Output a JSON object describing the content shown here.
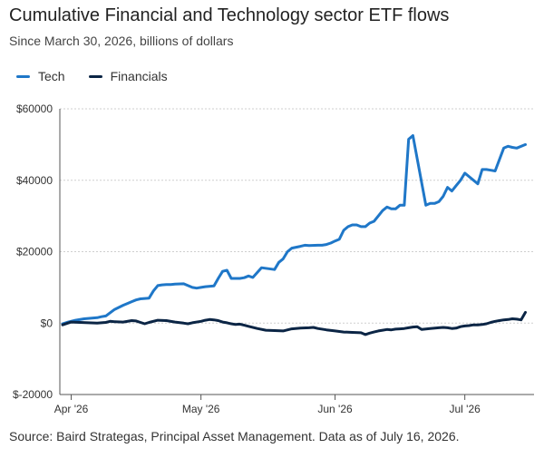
{
  "chart_data": {
    "type": "line",
    "title": "Cumulative Financial and Technology sector ETF flows",
    "subtitle": "Since March 30, 2026, billions of dollars",
    "source": "Source: Baird Strategas, Principal Asset Management. Data as of July 16, 2026.",
    "x_start": "2026-03-30",
    "x_ticks": [
      {
        "day": 2,
        "label": "Apr '26"
      },
      {
        "day": 32,
        "label": "May '26"
      },
      {
        "day": 63,
        "label": "Jun '26"
      },
      {
        "day": 93,
        "label": "Jul '26"
      }
    ],
    "ylim": [
      -20000,
      60000
    ],
    "y_ticks": [
      {
        "value": 60000,
        "label": "$60000"
      },
      {
        "value": 40000,
        "label": "$40000"
      },
      {
        "value": 20000,
        "label": "$20000"
      },
      {
        "value": 0,
        "label": "$0"
      },
      {
        "value": -20000,
        "label": "$-20000"
      }
    ],
    "grid": "horizontal",
    "legend": "top-left",
    "series": [
      {
        "name": "Tech",
        "color": "#1f77c8",
        "x": [
          0,
          1,
          3,
          5,
          8,
          9,
          10,
          12,
          14,
          15,
          16,
          17,
          18,
          20,
          21,
          22,
          23,
          24,
          25,
          26,
          28,
          30,
          31,
          32,
          33,
          35,
          36,
          37,
          38,
          39,
          41,
          42,
          43,
          44,
          46,
          49,
          50,
          51,
          52,
          53,
          55,
          56,
          57,
          59,
          60,
          61,
          62,
          63,
          64,
          65,
          66,
          67,
          68,
          69,
          70,
          71,
          72,
          73,
          74,
          75,
          76,
          77,
          78,
          79,
          80,
          81,
          84,
          85,
          86,
          87,
          88,
          89,
          90,
          91,
          92,
          93,
          96,
          97,
          98,
          99,
          100,
          102,
          103,
          104,
          105,
          107
        ],
        "y": [
          -200,
          200,
          800,
          1200,
          1500,
          1800,
          2000,
          3800,
          5000,
          5500,
          6000,
          6500,
          6800,
          7000,
          9000,
          10500,
          10700,
          10800,
          10800,
          10900,
          11000,
          10000,
          9800,
          10000,
          10200,
          10400,
          12500,
          14500,
          14800,
          12500,
          12500,
          12700,
          13200,
          12800,
          15500,
          15000,
          17000,
          18000,
          20000,
          21000,
          21500,
          21800,
          21700,
          21800,
          21800,
          22000,
          22400,
          23000,
          23500,
          26000,
          27000,
          27500,
          27500,
          27000,
          27000,
          28000,
          28500,
          30000,
          31500,
          32500,
          32000,
          32000,
          33000,
          33000,
          51500,
          52500,
          33000,
          33500,
          33500,
          34000,
          35500,
          38000,
          37000,
          38500,
          40000,
          42000,
          39000,
          43000,
          43000,
          42800,
          42600,
          49000,
          49500,
          49200,
          49000,
          50000
        ],
        "_note": null
      },
      {
        "name": "Financials",
        "color": "#0b2545",
        "x": [
          0,
          2,
          4,
          6,
          8,
          10,
          11,
          12,
          14,
          16,
          17,
          18,
          19,
          20,
          22,
          24,
          26,
          28,
          29,
          30,
          32,
          33,
          34,
          35,
          36,
          37,
          38,
          39,
          40,
          41,
          42,
          43,
          45,
          47,
          49,
          51,
          53,
          55,
          57,
          58,
          59,
          61,
          63,
          65,
          67,
          69,
          70,
          71,
          72,
          73,
          74,
          75,
          76,
          77,
          78,
          79,
          80,
          81,
          82,
          83,
          85,
          87,
          88,
          89,
          90,
          91,
          92,
          93,
          94,
          95,
          96,
          97,
          98,
          99,
          100,
          101,
          102,
          103,
          104,
          105,
          106,
          107
        ],
        "y": [
          -500,
          300,
          200,
          100,
          0,
          200,
          500,
          400,
          300,
          700,
          600,
          200,
          -200,
          200,
          800,
          700,
          300,
          0,
          -200,
          100,
          500,
          800,
          1000,
          900,
          700,
          300,
          100,
          -200,
          -400,
          -300,
          -600,
          -900,
          -1500,
          -2000,
          -2100,
          -2200,
          -1600,
          -1400,
          -1300,
          -1200,
          -1500,
          -1900,
          -2200,
          -2500,
          -2600,
          -2700,
          -3200,
          -2800,
          -2500,
          -2200,
          -2000,
          -1800,
          -1900,
          -1700,
          -1600,
          -1500,
          -1300,
          -1100,
          -1000,
          -1800,
          -1500,
          -1300,
          -1200,
          -1300,
          -1500,
          -1400,
          -1000,
          -800,
          -700,
          -500,
          -500,
          -400,
          -200,
          200,
          500,
          700,
          900,
          1000,
          1200,
          1100,
          900,
          3000
        ]
      }
    ]
  }
}
